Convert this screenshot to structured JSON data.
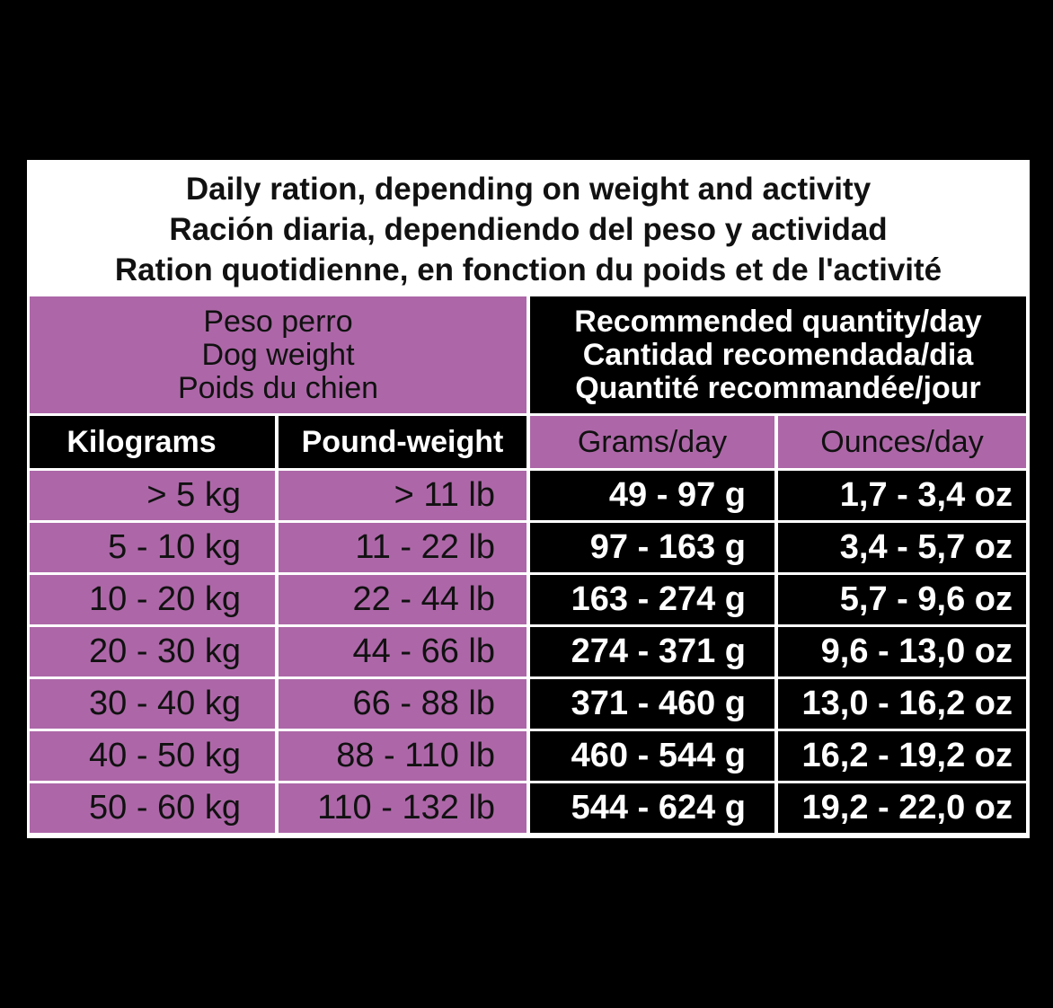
{
  "header": {
    "lines": [
      "Daily ration, depending on weight and activity",
      "Ración diaria, dependiendo del peso y actividad",
      "Ration quotidienne, en fonction du poids et de l'activité"
    ]
  },
  "table": {
    "group_headers": [
      {
        "lines": [
          "Peso perro",
          "Dog weight",
          "Poids du chien"
        ]
      },
      {
        "lines": [
          "Recommended quantity/day",
          "Cantidad recomendada/dia",
          "Quantité recommandée/jour"
        ]
      }
    ],
    "columns": [
      "Kilograms",
      "Pound-weight",
      "Grams/day",
      "Ounces/day"
    ],
    "rows": [
      [
        "> 5 kg",
        "> 11 lb",
        "49 - 97 g",
        "1,7 - 3,4 oz"
      ],
      [
        "5 - 10 kg",
        "11 - 22 lb",
        "97 - 163 g",
        "3,4 - 5,7 oz"
      ],
      [
        "10 - 20 kg",
        "22 - 44 lb",
        "163 - 274 g",
        "5,7 - 9,6 oz"
      ],
      [
        "20 - 30 kg",
        "44 - 66 lb",
        "274 - 371 g",
        "9,6 - 13,0 oz"
      ],
      [
        "30 - 40 kg",
        "66 - 88 lb",
        "371 - 460 g",
        "13,0 - 16,2 oz"
      ],
      [
        "40 - 50 kg",
        "88 - 110 lb",
        "460 - 544 g",
        "16,2 - 19,2 oz"
      ],
      [
        "50 - 60 kg",
        "110 - 132 lb",
        "544 - 624 g",
        "19,2 - 22,0 oz"
      ]
    ]
  }
}
